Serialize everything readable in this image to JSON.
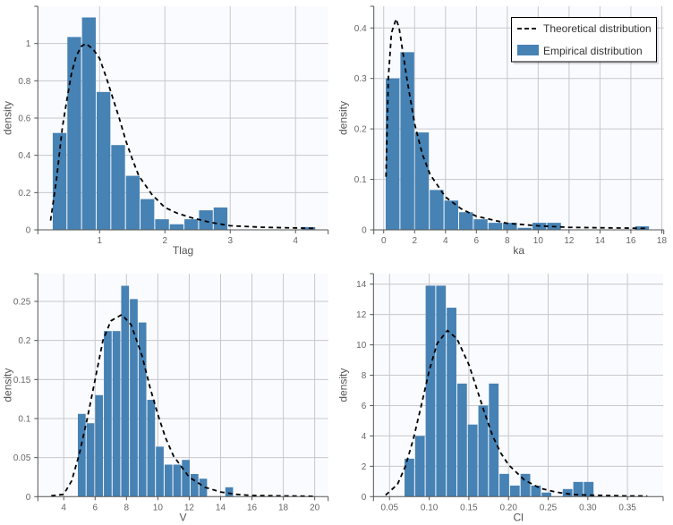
{
  "colors": {
    "bar": "#4682b4",
    "curve": "#000000",
    "plot_bg": "#fafbfe",
    "grid": "#c8c8cc",
    "axis": "#555555"
  },
  "legend": {
    "placement": "top-right",
    "panel": 1,
    "theoretical_label": "Theoretical distribution",
    "empirical_label": "Empirical distribution"
  },
  "chart_data": [
    {
      "type": "bar",
      "xlabel": "Tlag",
      "ylabel": "density",
      "xlim": [
        0.055,
        4.5
      ],
      "ylim": [
        0,
        1.2
      ],
      "grid": true,
      "xticks": [
        {
          "v": 1,
          "label": "1"
        },
        {
          "v": 2,
          "label": "2"
        },
        {
          "v": 3,
          "label": "3"
        },
        {
          "v": 4,
          "label": "4"
        }
      ],
      "yticks": [
        {
          "v": 0,
          "label": "0"
        },
        {
          "v": 0.2,
          "label": "0.2"
        },
        {
          "v": 0.4,
          "label": "0.4"
        },
        {
          "v": 0.6,
          "label": "0.6"
        },
        {
          "v": 0.8,
          "label": "0.8"
        },
        {
          "v": 1,
          "label": "1"
        }
      ],
      "bin_start": 0.283,
      "bin_width": 0.224,
      "values": [
        0.52,
        1.035,
        1.14,
        0.74,
        0.455,
        0.29,
        0.165,
        0.057,
        0.03,
        0.057,
        0.105,
        0.12,
        0,
        0,
        0,
        0,
        0,
        0.015
      ],
      "curve": {
        "x": [
          0.25,
          0.34,
          0.43,
          0.5,
          0.57,
          0.64,
          0.72,
          0.79,
          0.9,
          1.0,
          1.1,
          1.2,
          1.3,
          1.4,
          1.5,
          1.6,
          1.8,
          2.0,
          2.2,
          2.4,
          2.7,
          3.0,
          3.5,
          4.0,
          4.3
        ],
        "y": [
          0.05,
          0.27,
          0.55,
          0.7,
          0.84,
          0.93,
          0.985,
          1.0,
          0.97,
          0.92,
          0.82,
          0.71,
          0.6,
          0.48,
          0.38,
          0.29,
          0.19,
          0.12,
          0.088,
          0.066,
          0.04,
          0.022,
          0.014,
          0.01,
          0.008
        ]
      }
    },
    {
      "type": "bar",
      "xlabel": "ka",
      "ylabel": "density",
      "xlim": [
        -0.64,
        18.13
      ],
      "ylim": [
        0,
        0.443
      ],
      "grid": true,
      "xticks": [
        {
          "v": 0,
          "label": "0"
        },
        {
          "v": 2,
          "label": "2"
        },
        {
          "v": 4,
          "label": "4"
        },
        {
          "v": 6,
          "label": "6"
        },
        {
          "v": 8,
          "label": "8"
        },
        {
          "v": 10,
          "label": "10"
        },
        {
          "v": 12,
          "label": "12"
        },
        {
          "v": 14,
          "label": "14"
        },
        {
          "v": 16,
          "label": "16"
        },
        {
          "v": 18,
          "label": "18"
        }
      ],
      "yticks": [
        {
          "v": 0,
          "label": "0"
        },
        {
          "v": 0.1,
          "label": "0.1"
        },
        {
          "v": 0.2,
          "label": "0.2"
        },
        {
          "v": 0.3,
          "label": "0.3"
        },
        {
          "v": 0.4,
          "label": "0.4"
        }
      ],
      "bin_start": 0.13,
      "bin_width": 0.95,
      "values": [
        0.3,
        0.352,
        0.193,
        0.079,
        0.058,
        0.035,
        0.021,
        0.014,
        0.014,
        0.004,
        0.014,
        0.014,
        0,
        0,
        0,
        0,
        0,
        0.007
      ],
      "curve": {
        "x": [
          0.15,
          0.3,
          0.5,
          0.8,
          1.0,
          1.5,
          2.0,
          2.5,
          3.0,
          4.0,
          5.0,
          6.0,
          8.0,
          10.0,
          12.0,
          14.0,
          17.0
        ],
        "y": [
          0.105,
          0.3,
          0.39,
          0.418,
          0.4,
          0.3,
          0.21,
          0.15,
          0.11,
          0.065,
          0.042,
          0.027,
          0.013,
          0.008,
          0.005,
          0.004,
          0.003
        ]
      }
    },
    {
      "type": "bar",
      "xlabel": "V",
      "ylabel": "density",
      "xlim": [
        2.35,
        20.86
      ],
      "ylim": [
        0,
        0.2855
      ],
      "grid": true,
      "xticks": [
        {
          "v": 4,
          "label": "4"
        },
        {
          "v": 6,
          "label": "6"
        },
        {
          "v": 8,
          "label": "8"
        },
        {
          "v": 10,
          "label": "10"
        },
        {
          "v": 12,
          "label": "12"
        },
        {
          "v": 14,
          "label": "14"
        },
        {
          "v": 16,
          "label": "16"
        },
        {
          "v": 18,
          "label": "18"
        },
        {
          "v": 20,
          "label": "20"
        }
      ],
      "yticks": [
        {
          "v": 0,
          "label": "0"
        },
        {
          "v": 0.05,
          "label": "0.05"
        },
        {
          "v": 0.1,
          "label": "0.1"
        },
        {
          "v": 0.15,
          "label": "0.15"
        },
        {
          "v": 0.2,
          "label": "0.2"
        },
        {
          "v": 0.25,
          "label": "0.25"
        }
      ],
      "bin_start": 4.9,
      "bin_width": 0.553,
      "values": [
        0.106,
        0.094,
        0.13,
        0.212,
        0.212,
        0.27,
        0.253,
        0.223,
        0.124,
        0.064,
        0.041,
        0.041,
        0.047,
        0.029,
        0.023,
        0,
        0,
        0.012
      ],
      "curve": {
        "x": [
          3.2,
          4.0,
          4.5,
          5.0,
          5.5,
          6.0,
          6.5,
          7.0,
          7.7,
          8.3,
          9.0,
          9.5,
          10.0,
          10.5,
          11.0,
          12.0,
          13.0,
          14.0,
          15.0,
          16.0,
          20.0
        ],
        "y": [
          0.001,
          0.003,
          0.02,
          0.055,
          0.1,
          0.15,
          0.2,
          0.225,
          0.233,
          0.22,
          0.18,
          0.14,
          0.105,
          0.075,
          0.052,
          0.025,
          0.012,
          0.006,
          0.003,
          0.0015,
          0.0005
        ]
      }
    },
    {
      "type": "bar",
      "xlabel": "Cl",
      "ylabel": "density",
      "xlim": [
        0.0297,
        0.395
      ],
      "ylim": [
        0,
        14.69
      ],
      "grid": true,
      "xticks": [
        {
          "v": 0.05,
          "label": "0.05"
        },
        {
          "v": 0.1,
          "label": "0.10"
        },
        {
          "v": 0.15,
          "label": "0.15"
        },
        {
          "v": 0.2,
          "label": "0.20"
        },
        {
          "v": 0.25,
          "label": "0.25"
        },
        {
          "v": 0.3,
          "label": "0.30"
        },
        {
          "v": 0.35,
          "label": "0.35"
        }
      ],
      "yticks": [
        {
          "v": 0,
          "label": "0"
        },
        {
          "v": 2,
          "label": "2"
        },
        {
          "v": 4,
          "label": "4"
        },
        {
          "v": 6,
          "label": "6"
        },
        {
          "v": 8,
          "label": "8"
        },
        {
          "v": 10,
          "label": "10"
        },
        {
          "v": 12,
          "label": "12"
        },
        {
          "v": 14,
          "label": "14"
        }
      ],
      "bin_start": 0.0689,
      "bin_width": 0.0133,
      "values": [
        2.5,
        4.0,
        13.9,
        13.9,
        12.45,
        7.45,
        4.75,
        6.0,
        7.45,
        1.5,
        0.73,
        1.5,
        0.73,
        0.27,
        0,
        0.5,
        0.97,
        0.97
      ],
      "curve": {
        "x": [
          0.045,
          0.06,
          0.07,
          0.08,
          0.09,
          0.1,
          0.11,
          0.123,
          0.135,
          0.15,
          0.16,
          0.17,
          0.18,
          0.19,
          0.2,
          0.22,
          0.24,
          0.26,
          0.28,
          0.3,
          0.35,
          0.375
        ],
        "y": [
          0.1,
          0.8,
          2.0,
          3.8,
          6.0,
          8.3,
          10.1,
          10.95,
          10.4,
          8.7,
          7.1,
          5.5,
          4.0,
          2.9,
          2.1,
          1.1,
          0.55,
          0.3,
          0.15,
          0.1,
          0.05,
          0.04
        ]
      }
    }
  ]
}
